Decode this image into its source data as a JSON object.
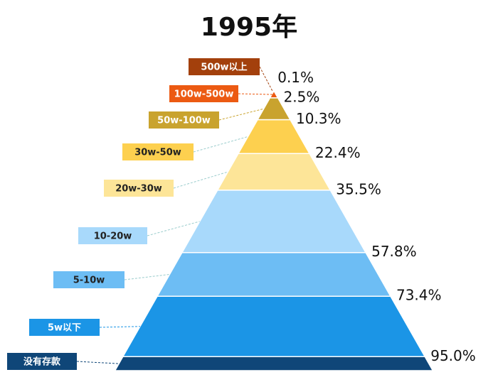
{
  "chart_data": {
    "type": "pyramid",
    "title": "1995年",
    "categories": [
      "500w以上",
      "100w-500w",
      "50w-100w",
      "30w-50w",
      "20w-30w",
      "10-20w",
      "5-10w",
      "5w以下",
      "没有存款"
    ],
    "values": [
      0.1,
      2.5,
      10.3,
      22.4,
      35.5,
      57.8,
      73.4,
      95.0,
      null
    ],
    "value_labels": [
      "0.1%",
      "2.5%",
      "10.3%",
      "22.4%",
      "35.5%",
      "57.8%",
      "73.4%",
      "95.0%",
      null
    ],
    "colors": [
      "#a3400c",
      "#ec5a12",
      "#c9a32e",
      "#fdd04f",
      "#fde598",
      "#a8d9fb",
      "#6dbdf4",
      "#1b95e6",
      "#0f4678"
    ]
  }
}
